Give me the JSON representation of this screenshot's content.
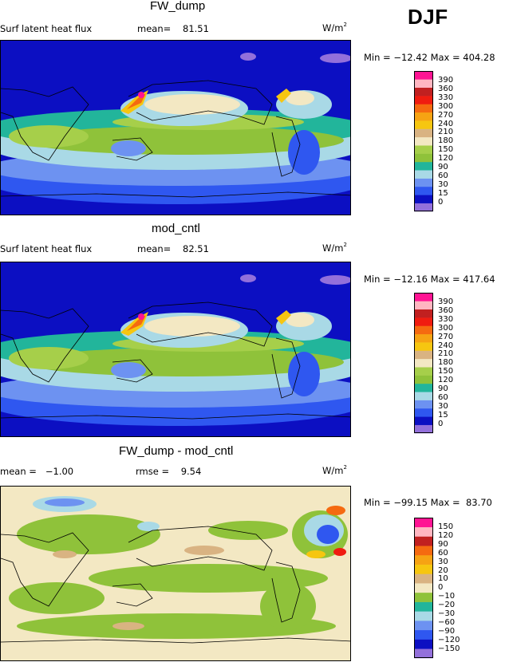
{
  "season": "DJF",
  "panels": [
    {
      "title": "FW_dump",
      "variable": "Surf latent heat flux",
      "mean_label": "mean=",
      "mean": "81.51",
      "units_base": "W/m",
      "units_exp": "2",
      "minmax": "Min = −12.42 Max = 404.28"
    },
    {
      "title": "mod_cntl",
      "variable": "Surf latent heat flux",
      "mean_label": "mean=",
      "mean": "82.51",
      "units_base": "W/m",
      "units_exp": "2",
      "minmax": "Min = −12.16 Max = 417.64"
    },
    {
      "title": "FW_dump - mod_cntl",
      "mean_text": "mean =   −1.00",
      "rmse_text": "rmse =    9.54",
      "units_base": "W/m",
      "units_exp": "2",
      "minmax": "Min = −99.15 Max =  83.70"
    }
  ],
  "colors": {
    "abs_scale": [
      "#9370db",
      "#0c0fc2",
      "#2f57f0",
      "#6d92f1",
      "#a9d9e6",
      "#22b59b",
      "#8fc23a",
      "#a6cf4a",
      "#f3e8c3",
      "#d9b382",
      "#f6c610",
      "#f6a313",
      "#f56a10",
      "#f01c10",
      "#c12020",
      "#ffb6c1",
      "#ff1493"
    ],
    "diff_scale": [
      "#9370db",
      "#0c0fc2",
      "#2f57f0",
      "#6d92f1",
      "#a9d9e6",
      "#22b59b",
      "#8fc23a",
      "#f3e8c3",
      "#d9b382",
      "#f6c610",
      "#f6a313",
      "#f56a10",
      "#c12020",
      "#ffb6c1",
      "#ff1493"
    ]
  },
  "chart_data": [
    {
      "type": "heatmap",
      "title": "FW_dump",
      "variable": "Surf latent heat flux",
      "units": "W/m2",
      "mean": 81.51,
      "min": -12.42,
      "max": 404.28,
      "colorbar_levels": [
        "390",
        "360",
        "330",
        "300",
        "270",
        "240",
        "210",
        "180",
        "150",
        "120",
        "90",
        "60",
        "30",
        "15",
        "0"
      ]
    },
    {
      "type": "heatmap",
      "title": "mod_cntl",
      "variable": "Surf latent heat flux",
      "units": "W/m2",
      "mean": 82.51,
      "min": -12.16,
      "max": 417.64,
      "colorbar_levels": [
        "390",
        "360",
        "330",
        "300",
        "270",
        "240",
        "210",
        "180",
        "150",
        "120",
        "90",
        "60",
        "30",
        "15",
        "0"
      ]
    },
    {
      "type": "heatmap",
      "title": "FW_dump - mod_cntl",
      "units": "W/m2",
      "mean": -1.0,
      "rmse": 9.54,
      "min": -99.15,
      "max": 83.7,
      "colorbar_levels": [
        "150",
        "120",
        "90",
        "60",
        "30",
        "20",
        "10",
        "0",
        "−10",
        "−20",
        "−30",
        "−60",
        "−90",
        "−120",
        "−150"
      ]
    }
  ]
}
